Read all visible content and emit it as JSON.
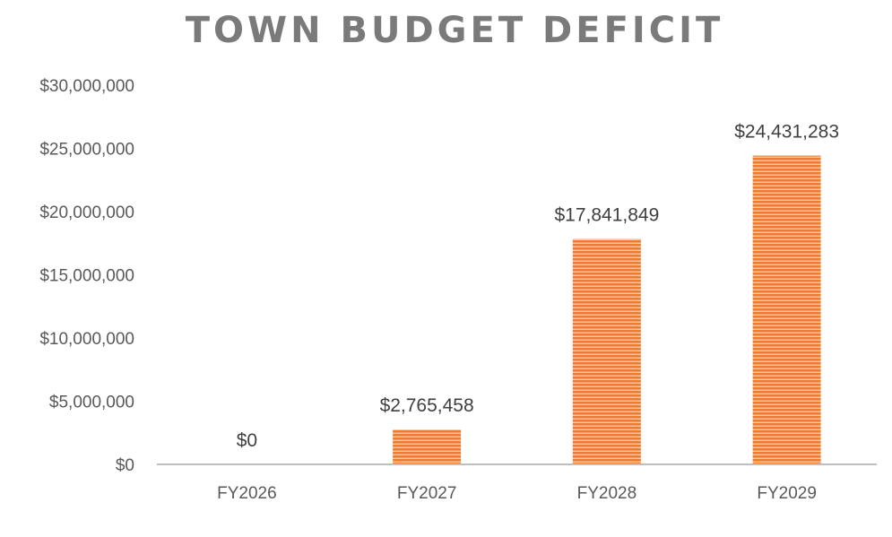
{
  "chart_data": {
    "type": "bar",
    "title": "TOWN BUDGET DEFICIT",
    "xlabel": "",
    "ylabel": "",
    "categories": [
      "FY2026",
      "FY2027",
      "FY2028",
      "FY2029"
    ],
    "values": [
      0,
      2765458,
      17841849,
      24431283
    ],
    "value_labels": [
      "$0",
      "$2,765,458",
      "$17,841,849",
      "$24,431,283"
    ],
    "ylim": [
      0,
      30000000
    ],
    "y_ticks": [
      0,
      5000000,
      10000000,
      15000000,
      20000000,
      25000000,
      30000000
    ],
    "y_tick_labels": [
      "$0",
      "$5,000,000",
      "$10,000,000",
      "$15,000,000",
      "$20,000,000",
      "$25,000,000",
      "$30,000,000"
    ],
    "grid": false,
    "legend": "none",
    "colors": {
      "bar": "#ED7D31",
      "bar_stripe": "#F8CBAD",
      "axis": "#BFBFBF"
    }
  }
}
